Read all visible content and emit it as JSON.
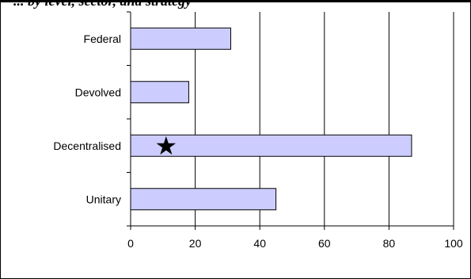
{
  "header": {
    "text": "... by level, sector, and strategy"
  },
  "chart_data": {
    "type": "bar",
    "orientation": "horizontal",
    "categories": [
      "Federal",
      "Devolved",
      "Decentralised",
      "Unitary"
    ],
    "values": [
      31,
      18,
      87,
      45
    ],
    "title": "",
    "xlabel": "",
    "ylabel": "",
    "xlim": [
      0,
      100
    ],
    "x_ticks": [
      "0",
      "20",
      "40",
      "60",
      "80",
      "100"
    ],
    "grid": "vertical",
    "bar_color": "#ccccff",
    "bar_edge_color": "#000000",
    "marker": {
      "symbol": "★",
      "category": "Decentralised",
      "value": 11
    }
  }
}
